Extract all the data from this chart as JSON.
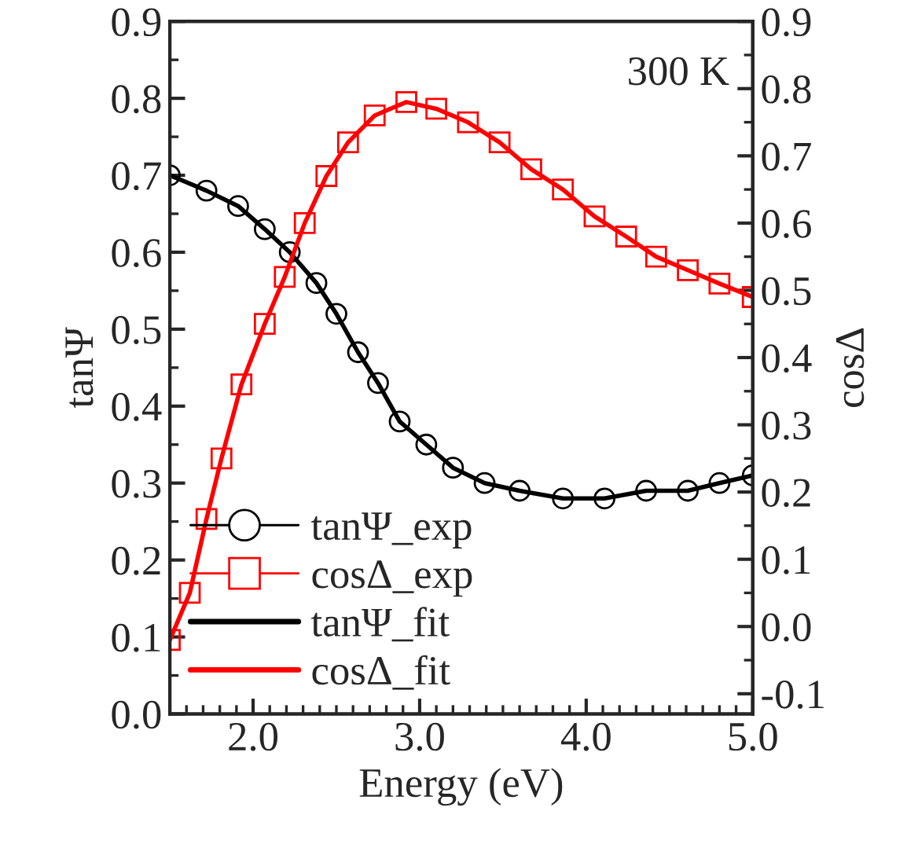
{
  "chart_data": {
    "type": "line",
    "xlabel": "Energy (eV)",
    "ylabel": "tanΨ",
    "y2label": "cosΔ",
    "annotations": [
      "300 K"
    ],
    "xlim": [
      1.5,
      5.0
    ],
    "xticks": [
      {
        "value": 2,
        "label": "2.0"
      },
      {
        "value": 3,
        "label": "3.0"
      },
      {
        "value": 4,
        "label": "4.0"
      },
      {
        "value": 5,
        "label": "5.0"
      }
    ],
    "ylim": [
      0,
      0.9
    ],
    "yticks": [
      {
        "value": 0,
        "label": "0.0"
      },
      0.1,
      0.2,
      0.3,
      0.4,
      0.5,
      0.6,
      0.7,
      0.8,
      0.9
    ],
    "y2lim": [
      -0.13,
      0.9
    ],
    "y2ticks": [
      -0.1,
      {
        "value": 0,
        "label": "0.0"
      },
      0.1,
      0.2,
      0.3,
      0.4,
      0.5,
      0.6,
      0.7,
      0.8,
      0.9
    ],
    "legend": "bottom left",
    "grid": false,
    "series": [
      {
        "name": "tanΨ_exp",
        "type": "scatter",
        "marker": "circle",
        "color": "#000000",
        "x": [
          1.5,
          1.72,
          1.91,
          2.07,
          2.22,
          2.38,
          2.5,
          2.63,
          2.75,
          2.88,
          3.04,
          3.2,
          3.39,
          3.6,
          3.86,
          4.11,
          4.36,
          4.61,
          4.8,
          5.0
        ],
        "values": [
          0.7,
          0.68,
          0.66,
          0.63,
          0.6,
          0.56,
          0.52,
          0.47,
          0.43,
          0.38,
          0.35,
          0.32,
          0.3,
          0.29,
          0.28,
          0.28,
          0.29,
          0.29,
          0.3,
          0.31
        ]
      },
      {
        "name": "cosΔ_exp",
        "type": "scatter",
        "marker": "square",
        "color": "#ff0000",
        "axis": "y2",
        "x": [
          1.5,
          1.62,
          1.72,
          1.81,
          1.93,
          2.07,
          2.19,
          2.31,
          2.44,
          2.57,
          2.73,
          2.92,
          3.1,
          3.29,
          3.48,
          3.67,
          3.86,
          4.05,
          4.24,
          4.42,
          4.61,
          4.8,
          5.0
        ],
        "values": [
          -0.02,
          0.05,
          0.16,
          0.25,
          0.36,
          0.45,
          0.52,
          0.6,
          0.67,
          0.72,
          0.76,
          0.78,
          0.77,
          0.75,
          0.72,
          0.68,
          0.65,
          0.61,
          0.58,
          0.55,
          0.53,
          0.51,
          0.49
        ]
      },
      {
        "name": "tanΨ_fit",
        "color": "#000000",
        "x": [
          1.5,
          1.72,
          1.91,
          2.07,
          2.22,
          2.38,
          2.5,
          2.63,
          2.75,
          2.88,
          3.04,
          3.2,
          3.39,
          3.6,
          3.86,
          4.11,
          4.36,
          4.61,
          4.8,
          5.0
        ],
        "values": [
          0.7,
          0.68,
          0.66,
          0.63,
          0.6,
          0.56,
          0.52,
          0.47,
          0.43,
          0.38,
          0.35,
          0.32,
          0.3,
          0.29,
          0.28,
          0.28,
          0.29,
          0.29,
          0.3,
          0.31
        ]
      },
      {
        "name": "cosΔ_fit",
        "color": "#ff0000",
        "axis": "y2",
        "x": [
          1.5,
          1.62,
          1.72,
          1.81,
          1.93,
          2.07,
          2.19,
          2.31,
          2.44,
          2.57,
          2.73,
          2.92,
          3.1,
          3.29,
          3.48,
          3.67,
          3.86,
          4.05,
          4.24,
          4.42,
          4.61,
          4.8,
          5.0
        ],
        "values": [
          -0.02,
          0.05,
          0.16,
          0.25,
          0.36,
          0.45,
          0.52,
          0.6,
          0.67,
          0.72,
          0.76,
          0.78,
          0.77,
          0.75,
          0.72,
          0.68,
          0.65,
          0.61,
          0.58,
          0.55,
          0.53,
          0.51,
          0.49
        ]
      }
    ]
  }
}
